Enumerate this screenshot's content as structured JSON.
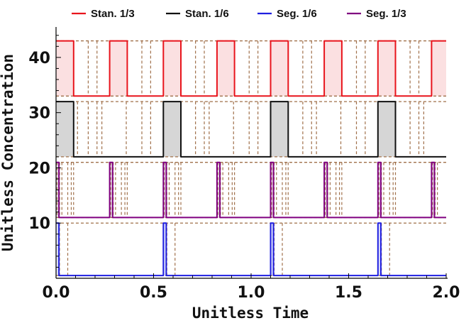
{
  "chart_data": {
    "type": "line",
    "title": "",
    "xlabel": "Unitless Time",
    "ylabel": "Unitless Concentration",
    "xlim": [
      0,
      2
    ],
    "ylim": [
      0,
      45
    ],
    "x_ticks": [
      "0.0",
      "0.5",
      "1.0",
      "1.5",
      "2.0"
    ],
    "y_ticks": [
      "10",
      "20",
      "30",
      "40"
    ],
    "x_tick_values": [
      0,
      0.5,
      1.0,
      1.5,
      2.0
    ],
    "y_tick_values": [
      10,
      20,
      30,
      40
    ],
    "legend_position": "top",
    "grid": false,
    "series": [
      {
        "name": "Stan. 1/3",
        "color": "#e8141c",
        "fill": "#fbe0e1",
        "low": 33,
        "high": 43,
        "high_intervals": [
          [
            0,
            0.09
          ],
          [
            0.275,
            0.365
          ],
          [
            0.55,
            0.64
          ],
          [
            0.825,
            0.915
          ],
          [
            1.1,
            1.19
          ],
          [
            1.375,
            1.465
          ],
          [
            1.65,
            1.74
          ],
          [
            1.925,
            2.0
          ]
        ],
        "guide_x": [
          0.09,
          0.165,
          0.21,
          0.365,
          0.44,
          0.485,
          0.64,
          0.715,
          0.76,
          0.915,
          0.99,
          1.035,
          1.19,
          1.265,
          1.31,
          1.465,
          1.54,
          1.585,
          1.74,
          1.815,
          1.86
        ]
      },
      {
        "name": "Stan. 1/6",
        "color": "#111111",
        "fill": "#d6d6d6",
        "low": 22,
        "high": 32,
        "high_intervals": [
          [
            0,
            0.09
          ],
          [
            0.55,
            0.64
          ],
          [
            1.1,
            1.19
          ],
          [
            1.65,
            1.74
          ]
        ],
        "guide_x": [
          0.09,
          0.11,
          0.165,
          0.21,
          0.235,
          0.36,
          0.44,
          0.485,
          0.64,
          0.715,
          0.76,
          0.785,
          0.91,
          0.99,
          1.035,
          1.19,
          1.265,
          1.31,
          1.335,
          1.46,
          1.54,
          1.585,
          1.74,
          1.815,
          1.86,
          1.885
        ]
      },
      {
        "name": "Seg. 1/3",
        "color": "#800080",
        "fill": "#eaddea",
        "low": 11,
        "high": 21,
        "high_intervals": [
          [
            0,
            0.015
          ],
          [
            0.275,
            0.29
          ],
          [
            0.55,
            0.565
          ],
          [
            0.825,
            0.84
          ],
          [
            1.1,
            1.115
          ],
          [
            1.375,
            1.39
          ],
          [
            1.65,
            1.665
          ],
          [
            1.925,
            1.94
          ]
        ],
        "guide_x": [
          0.005,
          0.018,
          0.03,
          0.06,
          0.078,
          0.09,
          0.28,
          0.293,
          0.305,
          0.335,
          0.353,
          0.365,
          0.555,
          0.568,
          0.58,
          0.61,
          0.628,
          0.64,
          0.83,
          0.843,
          0.855,
          0.885,
          0.903,
          0.915,
          1.105,
          1.118,
          1.13,
          1.16,
          1.178,
          1.19,
          1.38,
          1.393,
          1.405,
          1.435,
          1.453,
          1.465,
          1.655,
          1.668,
          1.68,
          1.71,
          1.728,
          1.74,
          1.93,
          1.943,
          1.955
        ]
      },
      {
        "name": "Seg. 1/6",
        "color": "#1f1fe0",
        "fill": "#dde0fb",
        "low": 0.5,
        "high": 10,
        "high_intervals": [
          [
            0,
            0.015
          ],
          [
            0.55,
            0.565
          ],
          [
            1.1,
            1.115
          ],
          [
            1.65,
            1.665
          ]
        ],
        "guide_x": [
          0.018,
          0.06,
          0.568,
          0.61,
          1.118,
          1.16,
          1.668,
          1.71
        ]
      }
    ]
  }
}
